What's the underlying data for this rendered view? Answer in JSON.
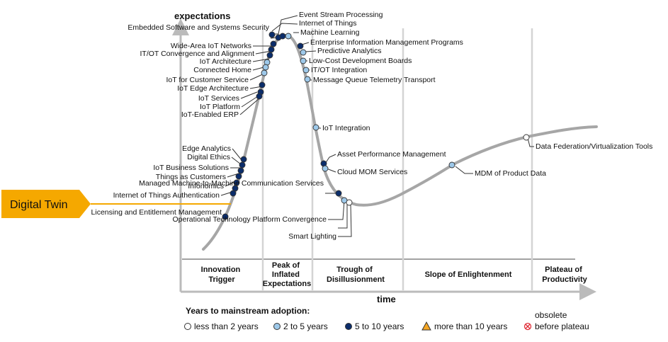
{
  "axes": {
    "y_label": "expectations",
    "x_label": "time"
  },
  "phases": [
    {
      "id": "innovation",
      "lines": [
        "Innovation",
        "Trigger"
      ]
    },
    {
      "id": "peak",
      "lines": [
        "Peak of",
        "Inflated",
        "Expectations"
      ]
    },
    {
      "id": "trough",
      "lines": [
        "Trough of",
        "Disillusionment"
      ]
    },
    {
      "id": "slope",
      "lines": [
        "Slope of Enlightenment"
      ]
    },
    {
      "id": "plateau",
      "lines": [
        "Plateau of",
        "Productivity"
      ]
    }
  ],
  "callout": {
    "label": "Digital Twin",
    "color": "#f5a800"
  },
  "colors": {
    "lt2": "#ffffff",
    "y2to5": "#9ec9ea",
    "y5to10": "#0b2d6b",
    "gt10": "#f5a623",
    "curve": "#a6a6a6",
    "phase_divider": "#d4d4d4"
  },
  "technologies": [
    {
      "name": "Event Stream Processing",
      "cat": "5to10"
    },
    {
      "name": "Internet of Things",
      "cat": "5to10"
    },
    {
      "name": "Machine Learning",
      "cat": "2to5"
    },
    {
      "name": "Embedded Software and Systems Security",
      "cat": "5to10"
    },
    {
      "name": "Wide-Area IoT Networks",
      "cat": "5to10"
    },
    {
      "name": "IT/OT Convergence and Alignment",
      "cat": "5to10"
    },
    {
      "name": "IoT Architecture",
      "cat": "5to10"
    },
    {
      "name": "Connected Home",
      "cat": "2to5"
    },
    {
      "name": "IoT for Customer Service",
      "cat": "2to5"
    },
    {
      "name": "IoT Edge Architecture",
      "cat": "2to5"
    },
    {
      "name": "IoT Services",
      "cat": "5to10"
    },
    {
      "name": "IoT Platform",
      "cat": "5to10"
    },
    {
      "name": "IoT-Enabled ERP",
      "cat": "5to10"
    },
    {
      "name": "Enterprise Information Management Programs",
      "cat": "5to10"
    },
    {
      "name": "Predictive Analytics",
      "cat": "2to5"
    },
    {
      "name": "Low-Cost Development Boards",
      "cat": "2to5"
    },
    {
      "name": "IT/OT Integration",
      "cat": "2to5"
    },
    {
      "name": "Message Queue Telemetry Transport",
      "cat": "2to5"
    },
    {
      "name": "IoT Integration",
      "cat": "2to5"
    },
    {
      "name": "Asset Performance Management",
      "cat": "5to10"
    },
    {
      "name": "Cloud MOM Services",
      "cat": "2to5"
    },
    {
      "name": "Edge Analytics",
      "cat": "5to10"
    },
    {
      "name": "Digital Ethics",
      "cat": "5to10"
    },
    {
      "name": "IoT Business Solutions",
      "cat": "5to10"
    },
    {
      "name": "Things as Customers",
      "cat": "5to10"
    },
    {
      "name": "Infonomics",
      "cat": "5to10"
    },
    {
      "name": "Internet of Things Authentication",
      "cat": "5to10"
    },
    {
      "name": "Digital Twin",
      "cat": "5to10"
    },
    {
      "name": "Licensing and Entitlement Management",
      "cat": "5to10"
    },
    {
      "name": "Managed Machine-to-Machine Communication Services",
      "cat": "5to10"
    },
    {
      "name": "Operational Technology Platform Convergence",
      "cat": "2to5"
    },
    {
      "name": "Smart Lighting",
      "cat": "lt2"
    },
    {
      "name": "MDM of Product Data",
      "cat": "2to5"
    },
    {
      "name": "Data Federation/Virtualization Tools",
      "cat": "lt2"
    }
  ],
  "legend": {
    "title": "Years to mainstream adoption:",
    "items": [
      {
        "key": "lt2",
        "label": "less than 2 years"
      },
      {
        "key": "2to5",
        "label": "2 to 5 years"
      },
      {
        "key": "5to10",
        "label": "5 to 10 years"
      },
      {
        "key": "gt10",
        "label": "more than 10 years"
      },
      {
        "key": "obsolete",
        "label_top": "obsolete",
        "label": "before plateau"
      }
    ]
  }
}
